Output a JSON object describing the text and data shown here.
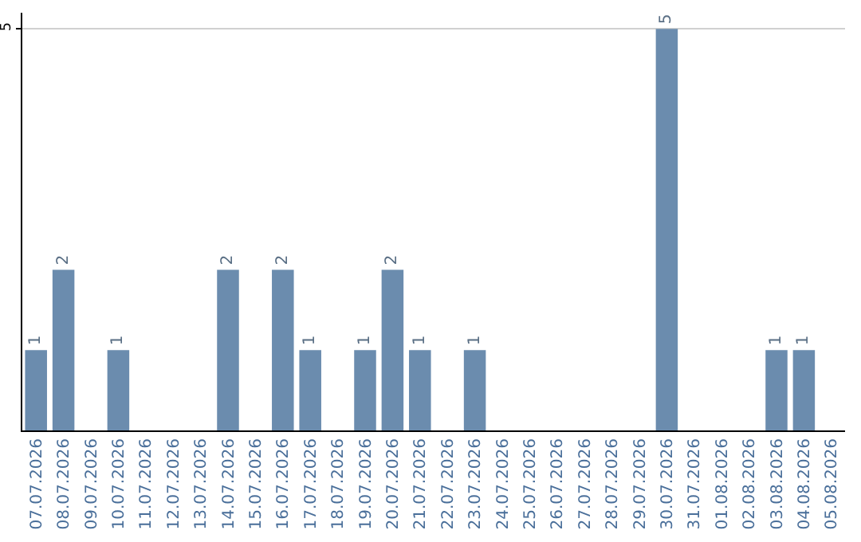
{
  "chart_data": {
    "type": "bar",
    "categories": [
      "07.07.2026",
      "08.07.2026",
      "09.07.2026",
      "10.07.2026",
      "11.07.2026",
      "12.07.2026",
      "13.07.2026",
      "14.07.2026",
      "15.07.2026",
      "16.07.2026",
      "17.07.2026",
      "18.07.2026",
      "19.07.2026",
      "20.07.2026",
      "21.07.2026",
      "22.07.2026",
      "23.07.2026",
      "24.07.2026",
      "25.07.2026",
      "26.07.2026",
      "27.07.2026",
      "28.07.2026",
      "29.07.2026",
      "30.07.2026",
      "31.07.2026",
      "01.08.2026",
      "02.08.2026",
      "03.08.2026",
      "04.08.2026",
      "05.08.2026"
    ],
    "values": [
      1,
      2,
      null,
      1,
      null,
      null,
      null,
      2,
      null,
      2,
      1,
      null,
      1,
      2,
      1,
      null,
      1,
      null,
      null,
      null,
      null,
      null,
      null,
      5,
      null,
      null,
      null,
      1,
      1,
      null
    ],
    "color": "#6b8cae",
    "ylim": [
      0,
      5.2
    ],
    "yticks": [
      5
    ],
    "grid": "y",
    "data_labels": true,
    "legend": false
  }
}
